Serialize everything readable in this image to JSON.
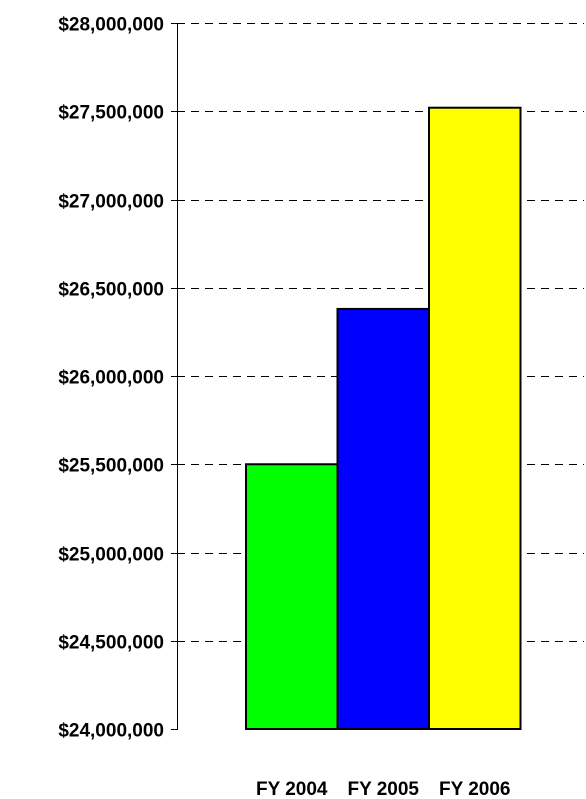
{
  "chart_data": {
    "type": "bar",
    "title": "",
    "xlabel": "",
    "ylabel": "",
    "categories": [
      "FY 2004",
      "FY 2005",
      "FY 2006"
    ],
    "values": [
      25500000,
      26380000,
      27520000
    ],
    "bar_colors": [
      "#00ff00",
      "#0000ff",
      "#ffff00"
    ],
    "ylim": [
      24000000,
      28000000
    ],
    "y_ticks": [
      {
        "value": 24000000,
        "label": "$24,000,000"
      },
      {
        "value": 24500000,
        "label": "$24,500,000"
      },
      {
        "value": 25000000,
        "label": "$25,000,000"
      },
      {
        "value": 25500000,
        "label": "$25,500,000"
      },
      {
        "value": 26000000,
        "label": "$26,000,000"
      },
      {
        "value": 26500000,
        "label": "$26,500,000"
      },
      {
        "value": 27000000,
        "label": "$27,000,000"
      },
      {
        "value": 27500000,
        "label": "$27,500,000"
      },
      {
        "value": 28000000,
        "label": "$28,000,000"
      }
    ],
    "grid": true,
    "grid_style": "dashed",
    "legend": "none"
  }
}
